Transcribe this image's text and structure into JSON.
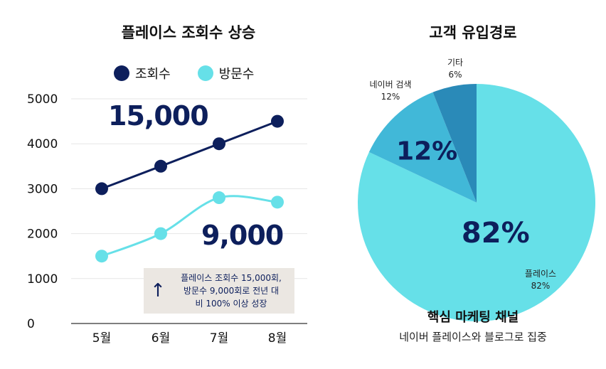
{
  "colors": {
    "views": "#0d1f5c",
    "visits": "#66e0e8",
    "pie_place": "#66e0e8",
    "pie_blog": "#41b8d8",
    "pie_etc": "#2a8ab8"
  },
  "chart_data": [
    {
      "type": "line",
      "title": "플레이스 조회수 상승",
      "categories": [
        "5월",
        "6월",
        "7월",
        "8월"
      ],
      "series": [
        {
          "name": "조회수",
          "values": [
            3000,
            3500,
            4000,
            4500
          ]
        },
        {
          "name": "방문수",
          "values": [
            1500,
            2000,
            2800,
            2700
          ]
        }
      ],
      "yticks": [
        "0",
        "1000",
        "2000",
        "3000",
        "4000",
        "5000"
      ],
      "ylim": [
        0,
        5000
      ],
      "big_labels": {
        "views": "15,000",
        "visits": "9,000"
      },
      "note": {
        "icon": "up-arrow-icon",
        "lines": [
          "플레이스 조회수 15,000회,",
          "방문수 9,000회로 전년 대",
          "비 100% 이상 성장"
        ]
      }
    },
    {
      "type": "pie",
      "title": "고객 유입경로",
      "slices": [
        {
          "name": "플레이스",
          "value": 82,
          "label": "82%"
        },
        {
          "name": "네이버 검색",
          "value": 12,
          "label": "12%"
        },
        {
          "name": "기타",
          "value": 6,
          "label": "6%"
        }
      ],
      "big_labels": [
        "82%",
        "12%"
      ]
    }
  ],
  "footer": {
    "title": "핵심 마케팅 채널",
    "subtitle": "네이버 플레이스와 블로그로 집중"
  }
}
